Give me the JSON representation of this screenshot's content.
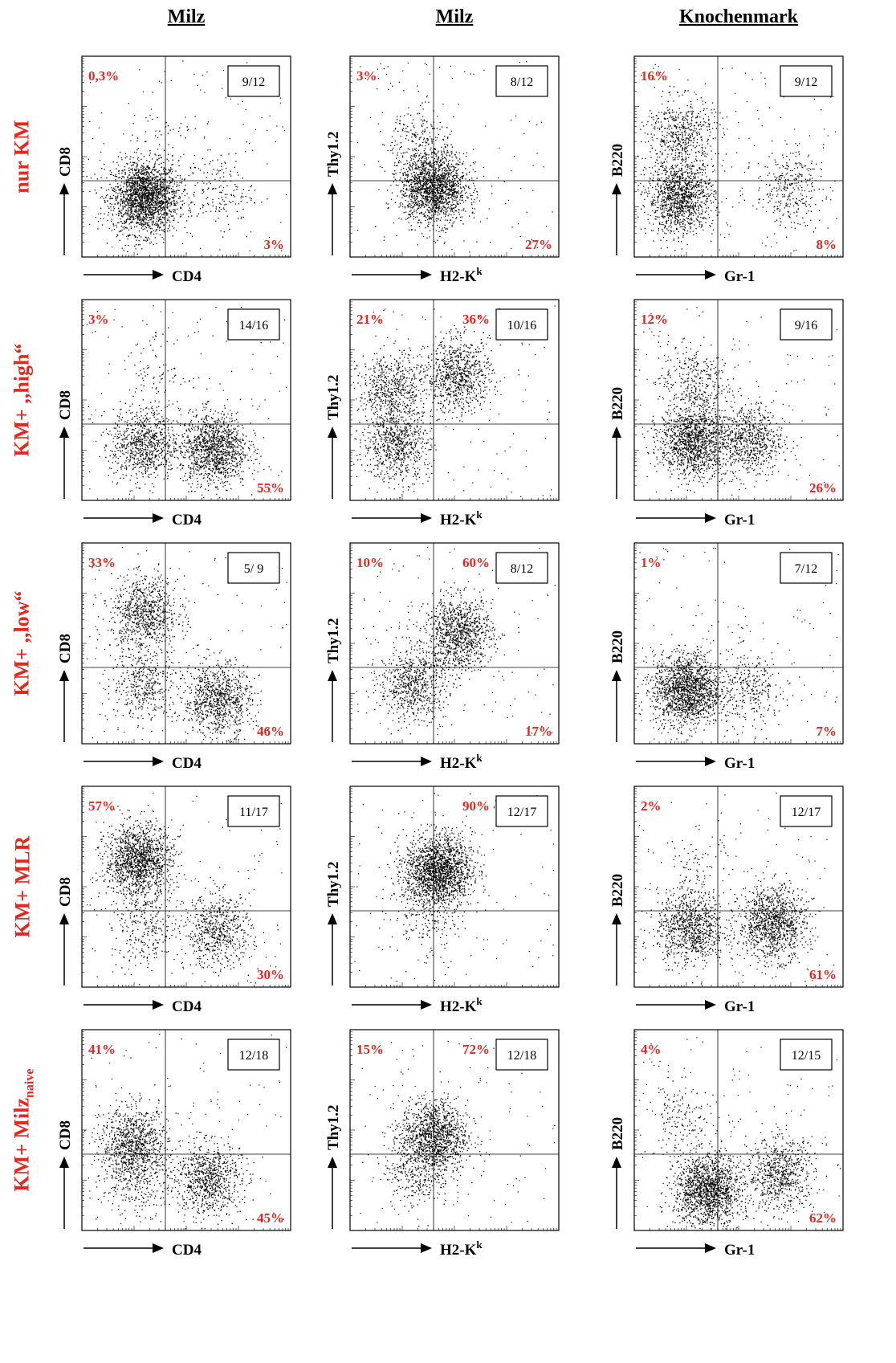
{
  "column_headers": [
    "Milz",
    "Milz",
    "Knochenmark"
  ],
  "row_labels": [
    {
      "main": "nur KM",
      "sub": ""
    },
    {
      "main": "KM+ ,,high“",
      "sub": ""
    },
    {
      "main": "KM+ ,,low“",
      "sub": ""
    },
    {
      "main": "KM+ MLR",
      "sub": ""
    },
    {
      "main": "KM+ Milz",
      "sub": "naive"
    }
  ],
  "colors": {
    "percent": "#e8261d",
    "dots": "#000000",
    "axis": "#000000"
  },
  "chart_data": [
    {
      "type": "scatter",
      "row": 0,
      "col": 0,
      "xlabel": "CD4",
      "ylabel": "CD8",
      "count": "9/12",
      "top_left": "0,3%",
      "top_right": "",
      "bottom_right": "3%",
      "clusters": [
        {
          "x": 0.3,
          "y": 0.3,
          "n": 2000
        },
        {
          "x": 0.66,
          "y": 0.33,
          "n": 160
        },
        {
          "x": 0.4,
          "y": 0.6,
          "n": 40
        }
      ]
    },
    {
      "type": "scatter",
      "row": 0,
      "col": 1,
      "xlabel": "H2-K",
      "xlabel_sup": "k",
      "ylabel": "Thy1.2",
      "count": "8/12",
      "top_left": "3%",
      "top_right": "",
      "bottom_right": "27%",
      "clusters": [
        {
          "x": 0.4,
          "y": 0.35,
          "n": 1700
        },
        {
          "x": 0.3,
          "y": 0.58,
          "n": 180
        }
      ]
    },
    {
      "type": "scatter",
      "row": 0,
      "col": 2,
      "xlabel": "Gr-1",
      "ylabel": "B220",
      "count": "9/12",
      "top_left": "16%",
      "top_right": "",
      "bottom_right": "8%",
      "clusters": [
        {
          "x": 0.22,
          "y": 0.3,
          "n": 1200
        },
        {
          "x": 0.22,
          "y": 0.62,
          "n": 500
        },
        {
          "x": 0.74,
          "y": 0.35,
          "n": 300
        }
      ]
    },
    {
      "type": "scatter",
      "row": 1,
      "col": 0,
      "xlabel": "CD4",
      "ylabel": "CD8",
      "count": "14/16",
      "top_left": "3%",
      "top_right": "",
      "bottom_right": "55%",
      "clusters": [
        {
          "x": 0.3,
          "y": 0.28,
          "n": 800
        },
        {
          "x": 0.63,
          "y": 0.26,
          "n": 1200
        },
        {
          "x": 0.35,
          "y": 0.65,
          "n": 80
        }
      ]
    },
    {
      "type": "scatter",
      "row": 1,
      "col": 1,
      "xlabel": "H2-K",
      "xlabel_sup": "k",
      "ylabel": "Thy1.2",
      "count": "10/16",
      "top_left": "21%",
      "top_right": "36%",
      "bottom_right": "",
      "clusters": [
        {
          "x": 0.2,
          "y": 0.55,
          "n": 600
        },
        {
          "x": 0.22,
          "y": 0.28,
          "n": 700
        },
        {
          "x": 0.52,
          "y": 0.62,
          "n": 800
        }
      ]
    },
    {
      "type": "scatter",
      "row": 1,
      "col": 2,
      "xlabel": "Gr-1",
      "ylabel": "B220",
      "count": "9/16",
      "top_left": "12%",
      "top_right": "",
      "bottom_right": "26%",
      "clusters": [
        {
          "x": 0.28,
          "y": 0.3,
          "n": 1300
        },
        {
          "x": 0.55,
          "y": 0.3,
          "n": 700
        },
        {
          "x": 0.28,
          "y": 0.6,
          "n": 300
        }
      ]
    },
    {
      "type": "scatter",
      "row": 2,
      "col": 0,
      "xlabel": "CD4",
      "ylabel": "CD8",
      "count": "5/ 9",
      "top_left": "33%",
      "top_right": "",
      "bottom_right": "46%",
      "clusters": [
        {
          "x": 0.3,
          "y": 0.65,
          "n": 800
        },
        {
          "x": 0.65,
          "y": 0.22,
          "n": 900
        },
        {
          "x": 0.3,
          "y": 0.3,
          "n": 400
        }
      ]
    },
    {
      "type": "scatter",
      "row": 2,
      "col": 1,
      "xlabel": "H2-K",
      "xlabel_sup": "k",
      "ylabel": "Thy1.2",
      "count": "8/12",
      "top_left": "10%",
      "top_right": "60%",
      "bottom_right": "17%",
      "clusters": [
        {
          "x": 0.52,
          "y": 0.55,
          "n": 1000
        },
        {
          "x": 0.3,
          "y": 0.3,
          "n": 700
        }
      ]
    },
    {
      "type": "scatter",
      "row": 2,
      "col": 2,
      "xlabel": "Gr-1",
      "ylabel": "B220",
      "count": "7/12",
      "top_left": "1%",
      "top_right": "",
      "bottom_right": "7%",
      "clusters": [
        {
          "x": 0.25,
          "y": 0.27,
          "n": 1600
        },
        {
          "x": 0.55,
          "y": 0.28,
          "n": 300
        }
      ]
    },
    {
      "type": "scatter",
      "row": 3,
      "col": 0,
      "xlabel": "CD4",
      "ylabel": "CD8",
      "count": "11/17",
      "top_left": "57%",
      "top_right": "",
      "bottom_right": "30%",
      "clusters": [
        {
          "x": 0.27,
          "y": 0.63,
          "n": 1400
        },
        {
          "x": 0.65,
          "y": 0.28,
          "n": 600
        },
        {
          "x": 0.3,
          "y": 0.28,
          "n": 250
        }
      ]
    },
    {
      "type": "scatter",
      "row": 3,
      "col": 1,
      "xlabel": "H2-K",
      "xlabel_sup": "k",
      "ylabel": "Thy1.2",
      "count": "12/17",
      "top_left": "",
      "top_right": "90%",
      "bottom_right": "",
      "clusters": [
        {
          "x": 0.42,
          "y": 0.58,
          "n": 1800
        },
        {
          "x": 0.35,
          "y": 0.35,
          "n": 150
        }
      ]
    },
    {
      "type": "scatter",
      "row": 3,
      "col": 2,
      "xlabel": "Gr-1",
      "ylabel": "B220",
      "count": "12/17",
      "top_left": "2%",
      "top_right": "",
      "bottom_right": "61%",
      "clusters": [
        {
          "x": 0.27,
          "y": 0.3,
          "n": 900
        },
        {
          "x": 0.66,
          "y": 0.32,
          "n": 1100
        },
        {
          "x": 0.3,
          "y": 0.6,
          "n": 80
        }
      ]
    },
    {
      "type": "scatter",
      "row": 4,
      "col": 0,
      "xlabel": "CD4",
      "ylabel": "CD8",
      "count": "12/18",
      "top_left": "41%",
      "top_right": "",
      "bottom_right": "45%",
      "clusters": [
        {
          "x": 0.25,
          "y": 0.43,
          "n": 900
        },
        {
          "x": 0.6,
          "y": 0.26,
          "n": 800
        },
        {
          "x": 0.25,
          "y": 0.25,
          "n": 250
        }
      ]
    },
    {
      "type": "scatter",
      "row": 4,
      "col": 1,
      "xlabel": "H2-K",
      "xlabel_sup": "k",
      "ylabel": "Thy1.2",
      "count": "12/18",
      "top_left": "15%",
      "top_right": "72%",
      "bottom_right": "",
      "clusters": [
        {
          "x": 0.4,
          "y": 0.47,
          "n": 1200
        },
        {
          "x": 0.32,
          "y": 0.3,
          "n": 300
        }
      ]
    },
    {
      "type": "scatter",
      "row": 4,
      "col": 2,
      "xlabel": "Gr-1",
      "ylabel": "B220",
      "count": "12/15",
      "top_left": "4%",
      "top_right": "",
      "bottom_right": "62%",
      "clusters": [
        {
          "x": 0.35,
          "y": 0.2,
          "n": 1500
        },
        {
          "x": 0.7,
          "y": 0.28,
          "n": 700
        },
        {
          "x": 0.22,
          "y": 0.55,
          "n": 150
        }
      ]
    }
  ]
}
